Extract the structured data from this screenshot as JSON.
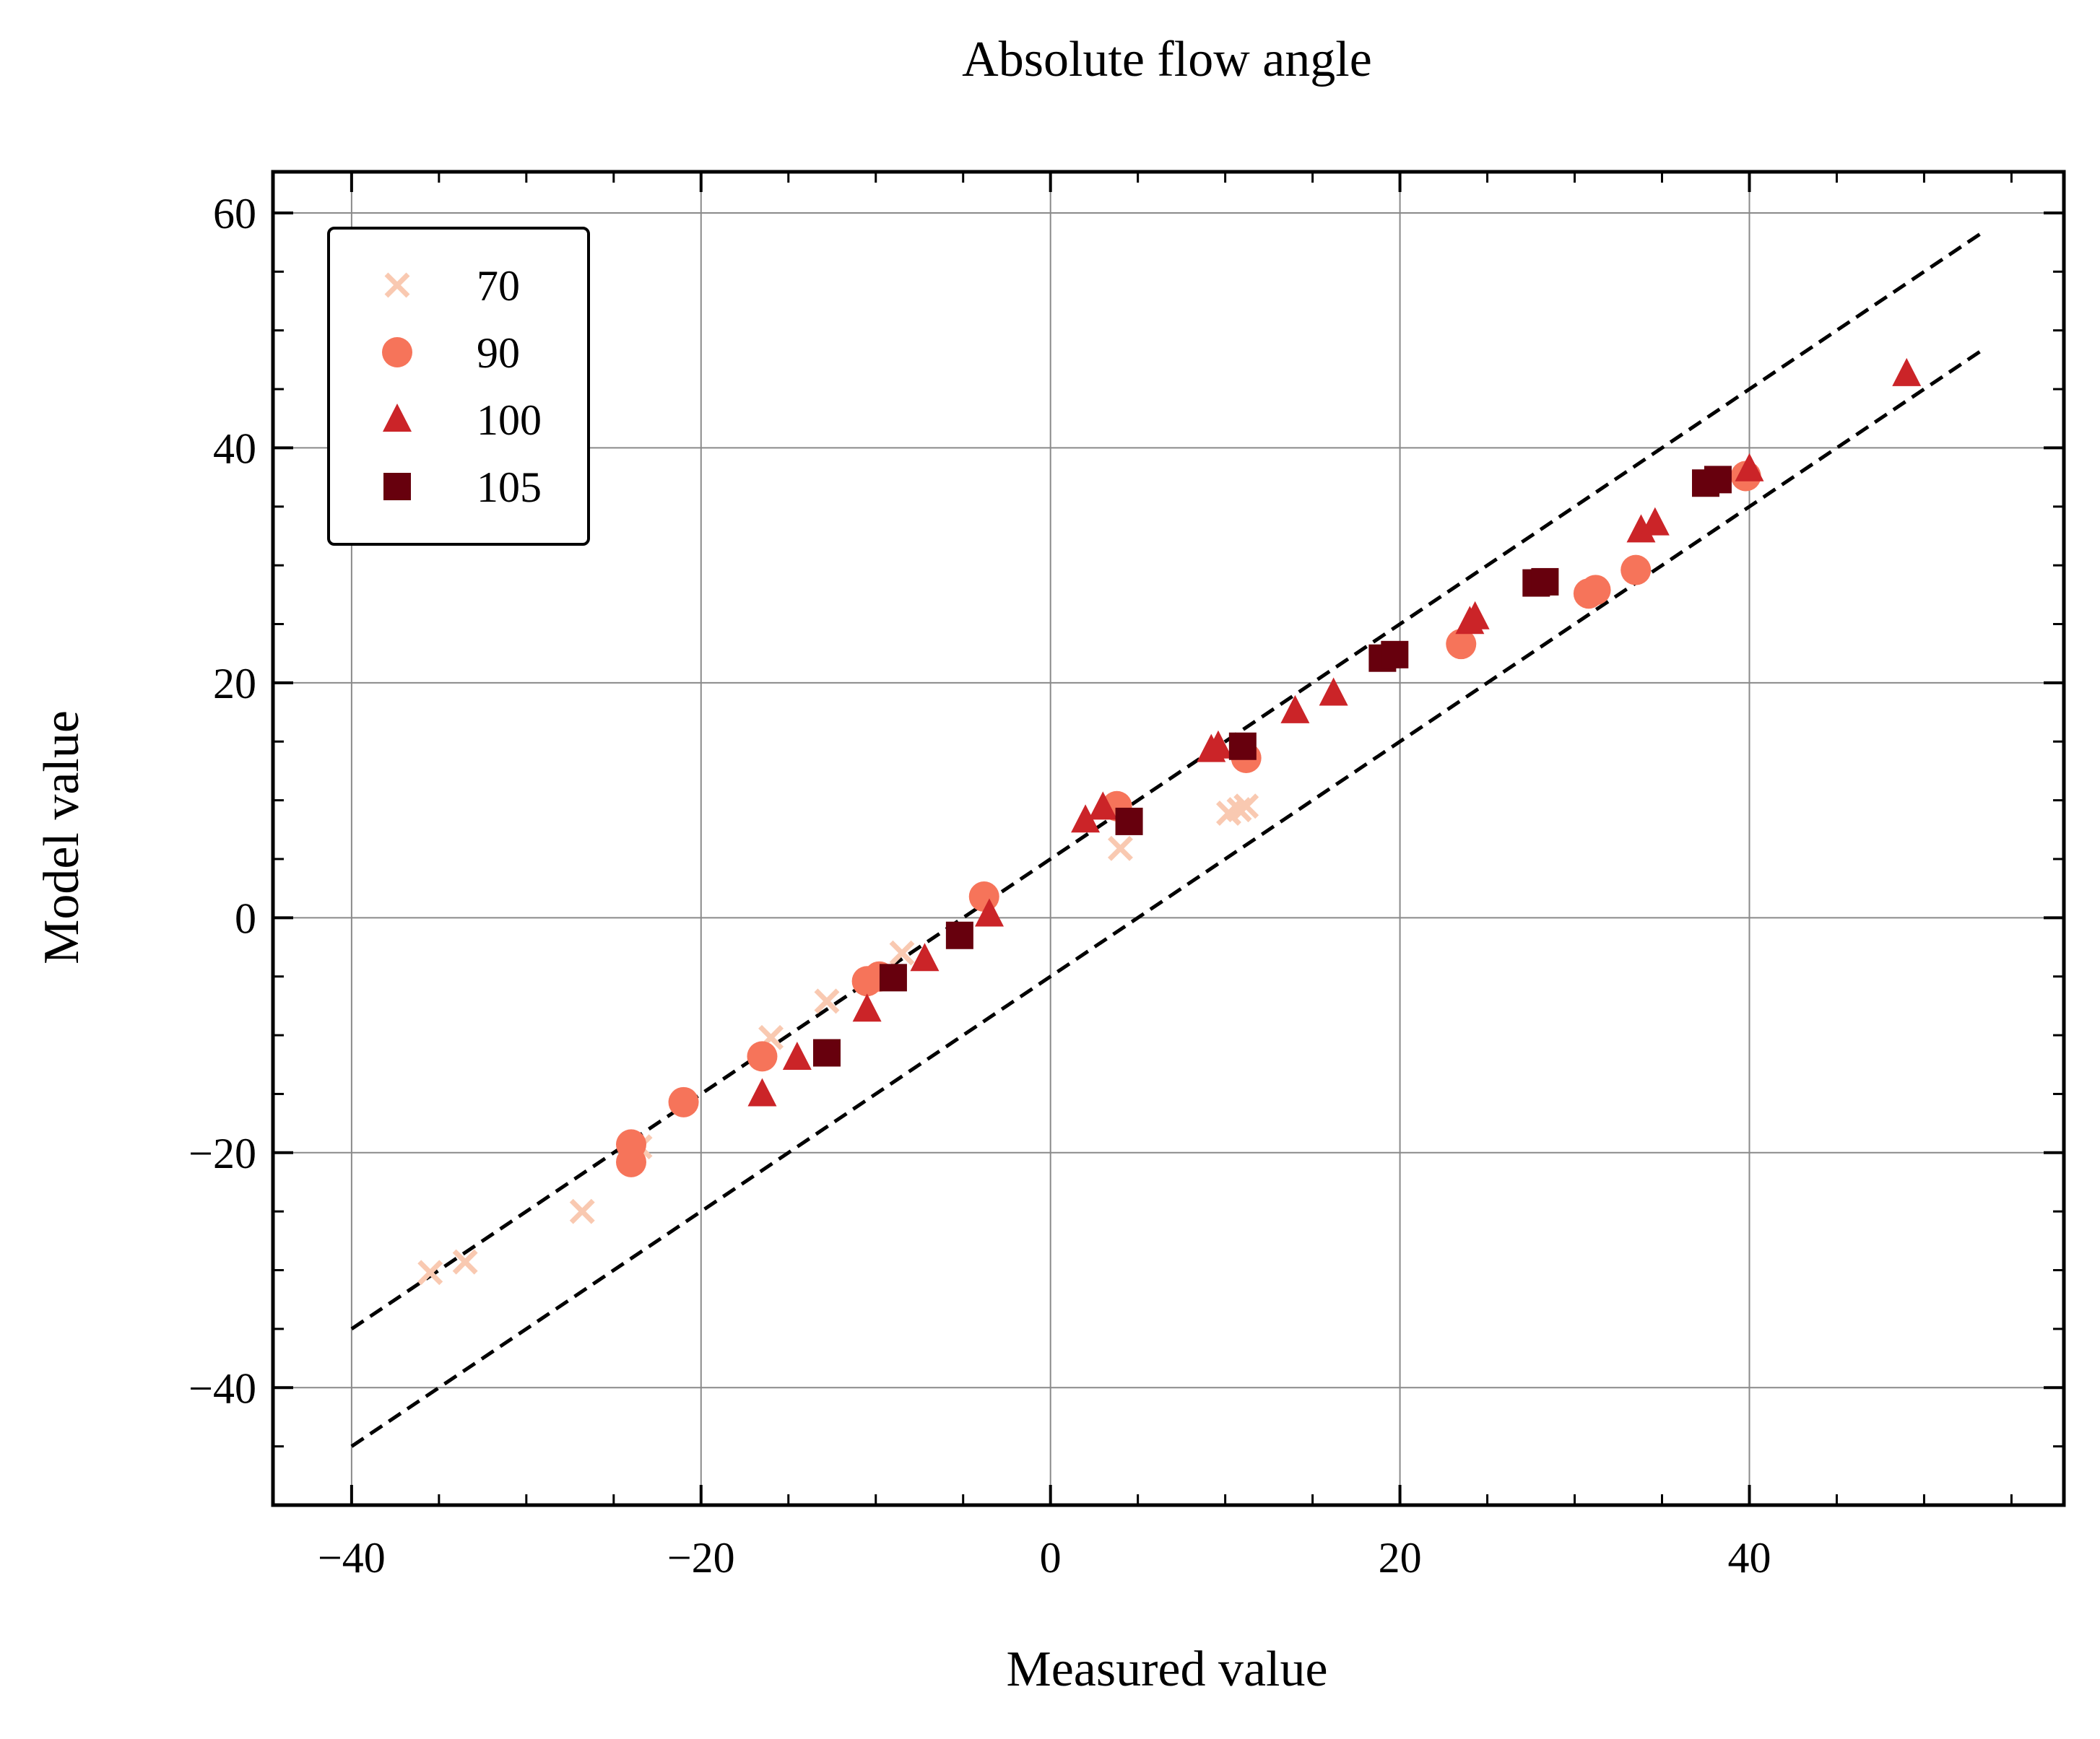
{
  "chart_data": {
    "type": "scatter",
    "title": "Absolute flow angle",
    "xlabel": "Measured value",
    "ylabel": "Model value",
    "xlim": [
      -44.5,
      58
    ],
    "ylim": [
      -50,
      63.5
    ],
    "xticks": [
      -40,
      -20,
      0,
      20,
      40
    ],
    "yticks": [
      -40,
      -20,
      0,
      20,
      40,
      60
    ],
    "xtick_labels": [
      "−40",
      "−20",
      "0",
      "20",
      "40"
    ],
    "ytick_labels": [
      "−40",
      "−20",
      "0",
      "20",
      "40",
      "60"
    ],
    "grid": true,
    "legend_position": "top-left",
    "series": [
      {
        "name": "70",
        "marker": "x",
        "color": "#f9c9b1",
        "points": [
          [
            -35.5,
            -30.2
          ],
          [
            -33.5,
            -29.3
          ],
          [
            -26.8,
            -25
          ],
          [
            -23.5,
            -19.5
          ],
          [
            -16,
            -10.2
          ],
          [
            -12.8,
            -7.1
          ],
          [
            -8.5,
            -3
          ],
          [
            4,
            5.9
          ],
          [
            10.2,
            8.9
          ],
          [
            10.8,
            9.2
          ],
          [
            11.2,
            9.5
          ]
        ]
      },
      {
        "name": "90",
        "marker": "circle",
        "color": "#f6745a",
        "points": [
          [
            -24,
            -20.8
          ],
          [
            -24,
            -19.3
          ],
          [
            -21,
            -15.7
          ],
          [
            -16.5,
            -11.8
          ],
          [
            -10.5,
            -5.4
          ],
          [
            -9.8,
            -5
          ],
          [
            -3.8,
            1.8
          ],
          [
            3.8,
            9.5
          ],
          [
            11.2,
            13.6
          ],
          [
            23.5,
            23.3
          ],
          [
            30.8,
            27.6
          ],
          [
            31.2,
            27.9
          ],
          [
            33.5,
            29.6
          ],
          [
            39.8,
            37.6
          ]
        ]
      },
      {
        "name": "100",
        "marker": "triangle",
        "color": "#cb2428",
        "points": [
          [
            -16.5,
            -15
          ],
          [
            -14.5,
            -11.9
          ],
          [
            -10.5,
            -7.8
          ],
          [
            -7.2,
            -3.5
          ],
          [
            -3.5,
            0.3
          ],
          [
            2,
            8.3
          ],
          [
            3,
            9.4
          ],
          [
            9.2,
            14.3
          ],
          [
            9.6,
            14.6
          ],
          [
            14,
            17.6
          ],
          [
            16.2,
            19.1
          ],
          [
            24,
            25.2
          ],
          [
            24.3,
            25.6
          ],
          [
            33.8,
            33
          ],
          [
            34.6,
            33.6
          ],
          [
            40,
            38.2
          ],
          [
            49,
            46.3
          ]
        ]
      },
      {
        "name": "105",
        "marker": "square",
        "color": "#67000d",
        "points": [
          [
            -12.8,
            -11.5
          ],
          [
            -9,
            -5.1
          ],
          [
            -5.2,
            -1.5
          ],
          [
            4.5,
            8.2
          ],
          [
            11,
            14.6
          ],
          [
            19,
            22.1
          ],
          [
            19.7,
            22.4
          ],
          [
            27.8,
            28.5
          ],
          [
            28.3,
            28.6
          ],
          [
            37.5,
            37
          ],
          [
            38.2,
            37.3
          ]
        ]
      }
    ],
    "reference_lines": [
      {
        "style": "dashed",
        "color": "#000000",
        "points": [
          [
            -40,
            -35
          ],
          [
            53.5,
            58.5
          ]
        ]
      },
      {
        "style": "dashed",
        "color": "#000000",
        "points": [
          [
            -40,
            -45
          ],
          [
            53.5,
            48.5
          ]
        ]
      }
    ]
  }
}
